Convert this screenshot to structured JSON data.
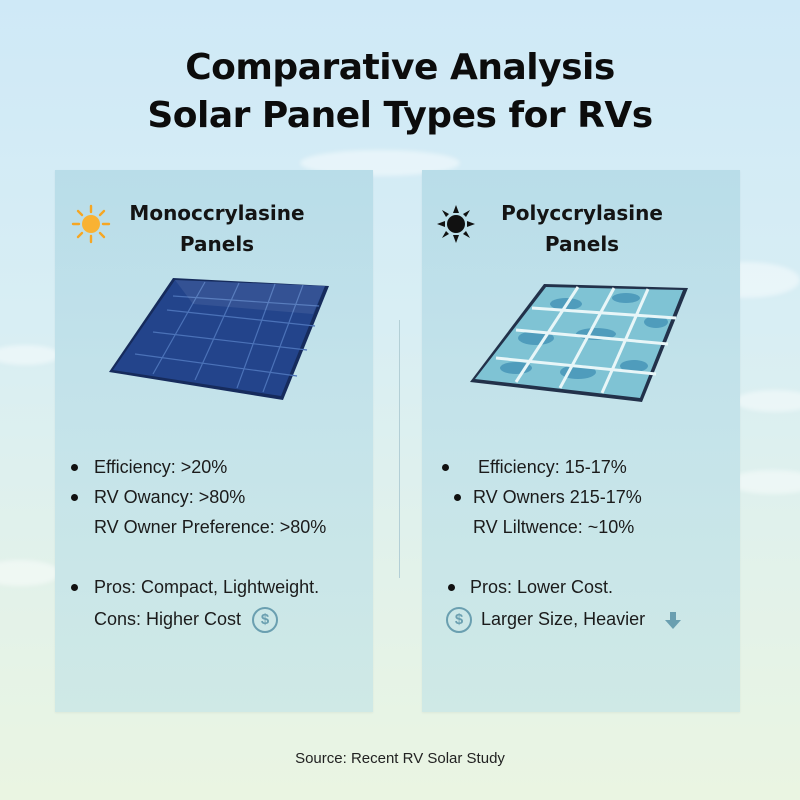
{
  "title": {
    "line1": "Comparative Analysis",
    "line2": "Solar Panel Types for RVs"
  },
  "cards": [
    {
      "icon": "sun-icon",
      "heading_line1": "Monoccrylasine",
      "heading_line2": "Panels",
      "stats": [
        "Efficiency: >20%",
        "RV Owancy: >80%",
        "RV Owner Preference: >80%"
      ],
      "pros": "Pros: Compact, Lightweight.",
      "cons": "Cons: Higher Cost",
      "cons_icon": "dollar-icon"
    },
    {
      "icon": "black-sun-icon",
      "heading_line1": "Polyccrylasine",
      "heading_line2": "Panels",
      "stats": [
        "Efficiency: 15-17%",
        "RV Owners 215-17%",
        "RV Liltwence: ~10%"
      ],
      "pros": "Pros: Lower Cost.",
      "cons": "Larger Size, Heavier",
      "cons_icon": "dollar-icon",
      "trend_icon": "down-arrow-icon"
    }
  ],
  "source": "Source: Recent RV Solar Study",
  "colors": {
    "accent_sun": "#f6a623",
    "mono_panel": "#1f3f86",
    "poly_panel": "#5aa6c4",
    "icon_teal": "#6a9fb0"
  }
}
